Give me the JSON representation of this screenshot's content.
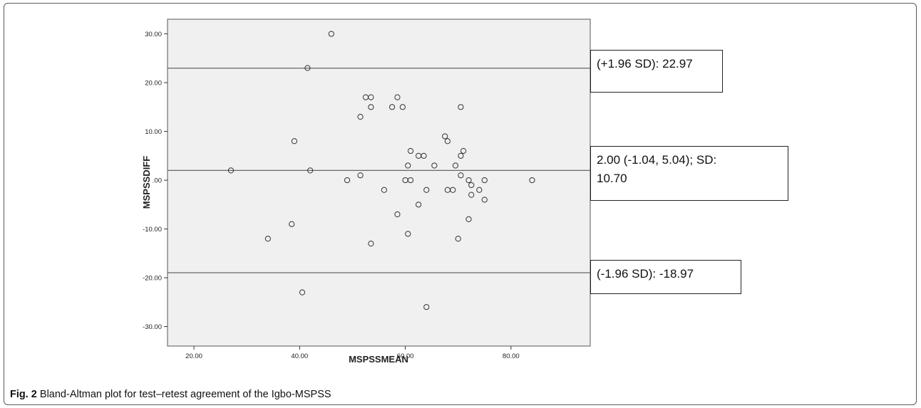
{
  "chart_data": {
    "type": "scatter",
    "xlabel": "MSPSSMEAN",
    "ylabel": "MSPSSDIFF",
    "xlim": [
      15,
      95
    ],
    "ylim": [
      -34,
      33
    ],
    "x_ticks": [
      "20.00",
      "40.00",
      "60.00",
      "80.00"
    ],
    "y_ticks": [
      "30.00",
      "20.00",
      "10.00",
      ".00",
      "-10.00",
      "-20.00",
      "-30.00"
    ],
    "reference_lines": {
      "upper_loa": 22.97,
      "mean": 2.0,
      "lower_loa": -18.97
    },
    "points": [
      {
        "x": 46.0,
        "y": 30
      },
      {
        "x": 41.5,
        "y": 23
      },
      {
        "x": 52.5,
        "y": 17
      },
      {
        "x": 53.5,
        "y": 17
      },
      {
        "x": 58.5,
        "y": 17
      },
      {
        "x": 53.5,
        "y": 15
      },
      {
        "x": 57.5,
        "y": 15
      },
      {
        "x": 59.5,
        "y": 15
      },
      {
        "x": 70.5,
        "y": 15
      },
      {
        "x": 51.5,
        "y": 13
      },
      {
        "x": 67.5,
        "y": 9
      },
      {
        "x": 39.0,
        "y": 8
      },
      {
        "x": 68.0,
        "y": 8
      },
      {
        "x": 61.0,
        "y": 6
      },
      {
        "x": 71.0,
        "y": 6
      },
      {
        "x": 62.5,
        "y": 5
      },
      {
        "x": 63.5,
        "y": 5
      },
      {
        "x": 70.5,
        "y": 5
      },
      {
        "x": 60.5,
        "y": 3
      },
      {
        "x": 65.5,
        "y": 3
      },
      {
        "x": 69.5,
        "y": 3
      },
      {
        "x": 27.0,
        "y": 2
      },
      {
        "x": 42.0,
        "y": 2
      },
      {
        "x": 51.5,
        "y": 1
      },
      {
        "x": 70.5,
        "y": 1
      },
      {
        "x": 49.0,
        "y": 0
      },
      {
        "x": 60.0,
        "y": 0
      },
      {
        "x": 61.0,
        "y": 0
      },
      {
        "x": 72.0,
        "y": 0
      },
      {
        "x": 75.0,
        "y": 0
      },
      {
        "x": 84.0,
        "y": 0
      },
      {
        "x": 72.5,
        "y": -1
      },
      {
        "x": 56.0,
        "y": -2
      },
      {
        "x": 64.0,
        "y": -2
      },
      {
        "x": 68.0,
        "y": -2
      },
      {
        "x": 69.0,
        "y": -2
      },
      {
        "x": 74.0,
        "y": -2
      },
      {
        "x": 72.5,
        "y": -3
      },
      {
        "x": 75.0,
        "y": -4
      },
      {
        "x": 62.5,
        "y": -5
      },
      {
        "x": 58.5,
        "y": -7
      },
      {
        "x": 72.0,
        "y": -8
      },
      {
        "x": 38.5,
        "y": -9
      },
      {
        "x": 60.5,
        "y": -11
      },
      {
        "x": 34.0,
        "y": -12
      },
      {
        "x": 70.0,
        "y": -12
      },
      {
        "x": 53.5,
        "y": -13
      },
      {
        "x": 40.5,
        "y": -23
      },
      {
        "x": 64.0,
        "y": -26
      }
    ]
  },
  "annotations": {
    "upper": "(+1.96 SD): 22.97",
    "mean_line1": "2.00 (-1.04, 5.04); SD:",
    "mean_line2": "10.70",
    "lower": "(-1.96 SD): -18.97"
  },
  "caption": {
    "label": "Fig. 2",
    "text": " Bland-Altman plot for test–retest agreement of the Igbo-MSPSS"
  }
}
